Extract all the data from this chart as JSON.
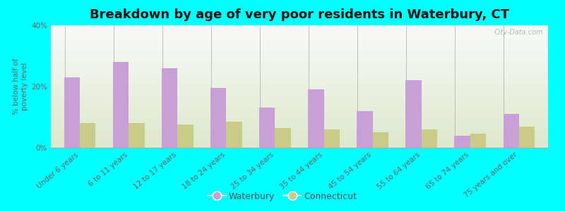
{
  "title": "Breakdown by age of very poor residents in Waterbury, CT",
  "ylabel": "% below half of\npoverty level",
  "categories": [
    "Under 6 years",
    "6 to 11 years",
    "12 to 17 years",
    "18 to 24 years",
    "25 to 34 years",
    "35 to 44 years",
    "45 to 54 years",
    "55 to 64 years",
    "65 to 74 years",
    "75 years and over"
  ],
  "waterbury": [
    23,
    28,
    26,
    19.5,
    13,
    19,
    12,
    22,
    4,
    11
  ],
  "connecticut": [
    8,
    8,
    7.5,
    8.5,
    6.5,
    6,
    5,
    6,
    4.5,
    7
  ],
  "waterbury_color": "#c8a0d8",
  "connecticut_color": "#c8cc88",
  "background_color": "#00ffff",
  "plot_bg_top": "#dce8cc",
  "plot_bg_bottom": "#f8faf8",
  "ylim": [
    0,
    40
  ],
  "yticks": [
    0,
    20,
    40
  ],
  "ytick_labels": [
    "0%",
    "20%",
    "40%"
  ],
  "bar_width": 0.32,
  "title_fontsize": 13,
  "axis_label_fontsize": 7.5,
  "tick_fontsize": 7.5,
  "legend_fontsize": 9,
  "watermark": "City-Data.com"
}
